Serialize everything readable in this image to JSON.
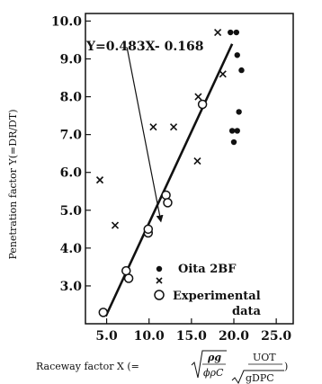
{
  "chart_data": {
    "type": "scatter",
    "title": "",
    "xlabel": "Raceway factor X (=",
    "xlabel_formula": {
      "num1": "ρg",
      "den1": "ϕρC",
      "num2": "UOT",
      "den2": "gDPC",
      "close": ")"
    },
    "ylabel": "Penetration factor Y(=DR/DT)",
    "xlim": [
      2.5,
      27
    ],
    "ylim": [
      2.0,
      10.2
    ],
    "xticks": [
      5.0,
      10.0,
      15.0,
      20.0,
      25.0
    ],
    "xtick_labels": [
      "5.0",
      "10.0",
      "15.0",
      "20.0",
      "25.0"
    ],
    "yticks": [
      3.0,
      4.0,
      5.0,
      6.0,
      7.0,
      8.0,
      9.0,
      10.0
    ],
    "ytick_labels": [
      "3.0",
      "4.0",
      "5.0",
      "6.0",
      "7.0",
      "8.0",
      "9.0",
      "10.0"
    ],
    "grid": false,
    "legend_position": "lower-right",
    "legend": [
      {
        "marker": "filled-circle",
        "label": "Oita 2BF"
      },
      {
        "marker": "cross",
        "label": ""
      },
      {
        "marker": "open-circle",
        "label": "Experimental"
      }
    ],
    "legend_extra_line": "data",
    "series": [
      {
        "name": "Oita 2BF",
        "marker": "filled-circle",
        "points": [
          [
            19.6,
            9.7
          ],
          [
            20.3,
            9.7
          ],
          [
            20.4,
            9.1
          ],
          [
            20.9,
            8.7
          ],
          [
            20.6,
            7.6
          ],
          [
            19.8,
            7.1
          ],
          [
            20.4,
            7.1
          ],
          [
            20.0,
            6.8
          ]
        ]
      },
      {
        "name": "",
        "marker": "cross",
        "points": [
          [
            4.2,
            5.8
          ],
          [
            6.0,
            4.6
          ],
          [
            10.5,
            7.2
          ],
          [
            12.9,
            7.2
          ],
          [
            15.8,
            8.0
          ],
          [
            15.7,
            6.3
          ],
          [
            18.1,
            9.7
          ],
          [
            18.7,
            8.6
          ]
        ]
      },
      {
        "name": "Experimental",
        "marker": "open-circle",
        "points": [
          [
            4.6,
            2.3
          ],
          [
            7.3,
            3.4
          ],
          [
            7.6,
            3.2
          ],
          [
            9.9,
            4.4
          ],
          [
            9.9,
            4.5
          ],
          [
            12.0,
            5.4
          ],
          [
            12.2,
            5.2
          ],
          [
            16.3,
            7.8
          ]
        ]
      }
    ],
    "regression": {
      "equation": "Y=0.483X- 0.168",
      "slope": 0.483,
      "intercept": -0.168,
      "x_range": [
        4.9,
        19.8
      ]
    },
    "annotation_arrow": {
      "from": [
        7.4,
        9.3
      ],
      "to": [
        11.4,
        4.7
      ]
    }
  }
}
